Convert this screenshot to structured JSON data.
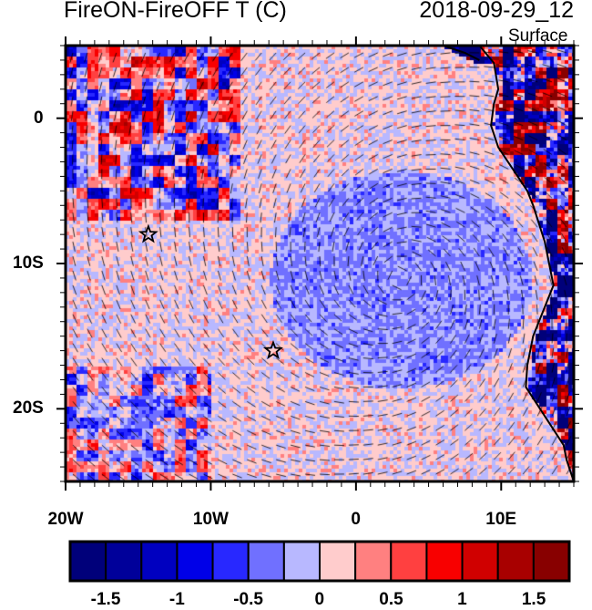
{
  "title": "FireON-FireOFF T (C)",
  "date": "2018-09-29_12",
  "level": "Surface",
  "map": {
    "lon_range": [
      -20,
      15
    ],
    "lat_range": [
      -25,
      5
    ],
    "lon_ticks": [
      {
        "value": -20,
        "label": "20W"
      },
      {
        "value": -10,
        "label": "10W"
      },
      {
        "value": 0,
        "label": "0"
      },
      {
        "value": 10,
        "label": "10E"
      }
    ],
    "lat_ticks": [
      {
        "value": 0,
        "label": "0"
      },
      {
        "value": -10,
        "label": "10S"
      },
      {
        "value": -20,
        "label": "20S"
      }
    ],
    "markers": [
      {
        "type": "star",
        "lon": -14.3,
        "lat": -8
      },
      {
        "type": "star",
        "lon": -5.7,
        "lat": -16
      }
    ]
  },
  "colorbar": {
    "levels": [
      -1.5,
      -1.25,
      -1,
      -0.75,
      -0.5,
      -0.25,
      0,
      0.25,
      0.5,
      0.75,
      1,
      1.25,
      1.5
    ],
    "colors": [
      "#00007a",
      "#00009a",
      "#0000c0",
      "#0000e8",
      "#2828ff",
      "#7070ff",
      "#b8b8ff",
      "#ffcccc",
      "#ff8080",
      "#ff4040",
      "#f80000",
      "#d00000",
      "#a80000",
      "#880000"
    ],
    "labels": [
      {
        "value": -1.5,
        "label": "-1.5"
      },
      {
        "value": -1,
        "label": "-1"
      },
      {
        "value": -0.5,
        "label": "-0.5"
      },
      {
        "value": 0,
        "label": "0"
      },
      {
        "value": 0.5,
        "label": "0.5"
      },
      {
        "value": 1,
        "label": "1"
      },
      {
        "value": 1.5,
        "label": "1.5"
      }
    ]
  }
}
